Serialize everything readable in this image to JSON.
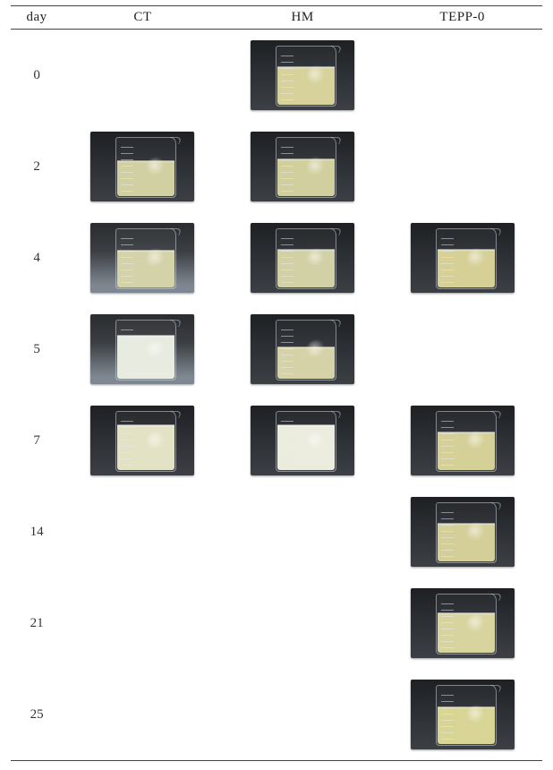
{
  "colors": {
    "rule": "#444444",
    "text": "#222222",
    "page_bg": "#ffffff"
  },
  "header": {
    "day": "day",
    "cols": [
      "CT",
      "HM",
      "TEPP-0"
    ]
  },
  "palette_bg": {
    "dark": "linear-gradient(to bottom, #1e2023 0%, #2a2d31 40%, #3c4045 100%)",
    "lightpanel": "linear-gradient(to bottom, #2a2c2f 0%, #3b3e42 40%, #7f8892 90%)"
  },
  "rows": [
    {
      "day": "0",
      "cells": [
        null,
        {
          "bg": "dark",
          "fill": 0.62,
          "liquid": "#d7d29b",
          "turbid": 0.0
        },
        null
      ]
    },
    {
      "day": "2",
      "cells": [
        {
          "bg": "dark",
          "fill": 0.58,
          "liquid": "#cfce9e",
          "turbid": 0.05
        },
        {
          "bg": "dark",
          "fill": 0.6,
          "liquid": "#cfcd99",
          "turbid": 0.05
        },
        null
      ]
    },
    {
      "day": "4",
      "cells": [
        {
          "bg": "lightpanel",
          "fill": 0.6,
          "liquid": "#d2cfa2",
          "turbid": 0.1
        },
        {
          "bg": "dark",
          "fill": 0.62,
          "liquid": "#cfcc9d",
          "turbid": 0.1
        },
        {
          "bg": "dark",
          "fill": 0.62,
          "liquid": "#d5cf94",
          "turbid": 0.02
        }
      ]
    },
    {
      "day": "5",
      "cells": [
        {
          "bg": "lightpanel",
          "fill": 0.7,
          "liquid": "#dfe3d2",
          "turbid": 0.55
        },
        {
          "bg": "dark",
          "fill": 0.52,
          "liquid": "#d2cf9f",
          "turbid": 0.1
        },
        null
      ]
    },
    {
      "day": "7",
      "cells": [
        {
          "bg": "dark",
          "fill": 0.74,
          "liquid": "#dedab0",
          "turbid": 0.35
        },
        {
          "bg": "dark",
          "fill": 0.74,
          "liquid": "#e6e6cf",
          "turbid": 0.55
        },
        {
          "bg": "dark",
          "fill": 0.62,
          "liquid": "#d4cf95",
          "turbid": 0.02
        }
      ]
    },
    {
      "day": "14",
      "cells": [
        null,
        null,
        {
          "bg": "dark",
          "fill": 0.62,
          "liquid": "#d3ce96",
          "turbid": 0.03
        }
      ]
    },
    {
      "day": "21",
      "cells": [
        null,
        null,
        {
          "bg": "dark",
          "fill": 0.64,
          "liquid": "#d7d29c",
          "turbid": 0.05
        }
      ]
    },
    {
      "day": "25",
      "cells": [
        null,
        null,
        {
          "bg": "dark",
          "fill": 0.6,
          "liquid": "#d7d493",
          "turbid": 0.02
        }
      ]
    }
  ]
}
